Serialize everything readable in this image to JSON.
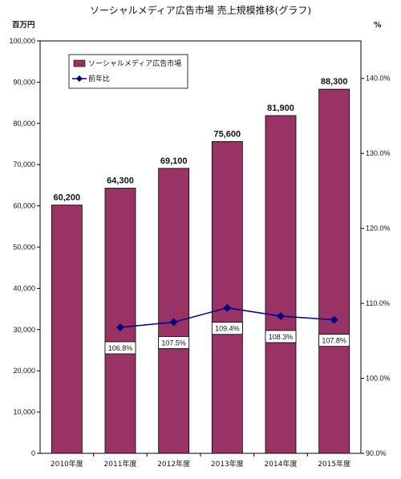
{
  "chart_data": {
    "type": "bar",
    "title": "ソーシャルメディア広告市場 売上規模推移(グラフ)",
    "y_unit_left": "百万円",
    "y_unit_right": "%",
    "categories": [
      "2010年度",
      "2011年度",
      "2012年度",
      "2013年度",
      "2014年度",
      "2015年度"
    ],
    "series": [
      {
        "name": "ソーシャルメディア広告市場",
        "type": "bar",
        "axis": "left",
        "color": "#993366",
        "values": [
          60200,
          64300,
          69100,
          75600,
          81900,
          88300
        ],
        "labels": [
          "60,200",
          "64,300",
          "69,100",
          "75,600",
          "81,900",
          "88,300"
        ]
      },
      {
        "name": "前年比",
        "type": "line",
        "axis": "right",
        "color": "#000080",
        "values": [
          null,
          106.8,
          107.5,
          109.4,
          108.3,
          107.8
        ],
        "labels": [
          "",
          "106.8%",
          "107.5%",
          "109.4%",
          "108.3%",
          "107.8%"
        ]
      }
    ],
    "ylim_left": [
      0,
      100000
    ],
    "ylim_right": [
      90.0,
      145.0
    ],
    "yticks_left": [
      "0",
      "10,000",
      "20,000",
      "30,000",
      "40,000",
      "50,000",
      "60,000",
      "70,000",
      "80,000",
      "90,000",
      "100,000"
    ],
    "yticks_right": [
      "90.0%",
      "100.0%",
      "110.0%",
      "120.0%",
      "130.0%",
      "140.0%"
    ],
    "grid": false,
    "legend_position": "top-left"
  }
}
